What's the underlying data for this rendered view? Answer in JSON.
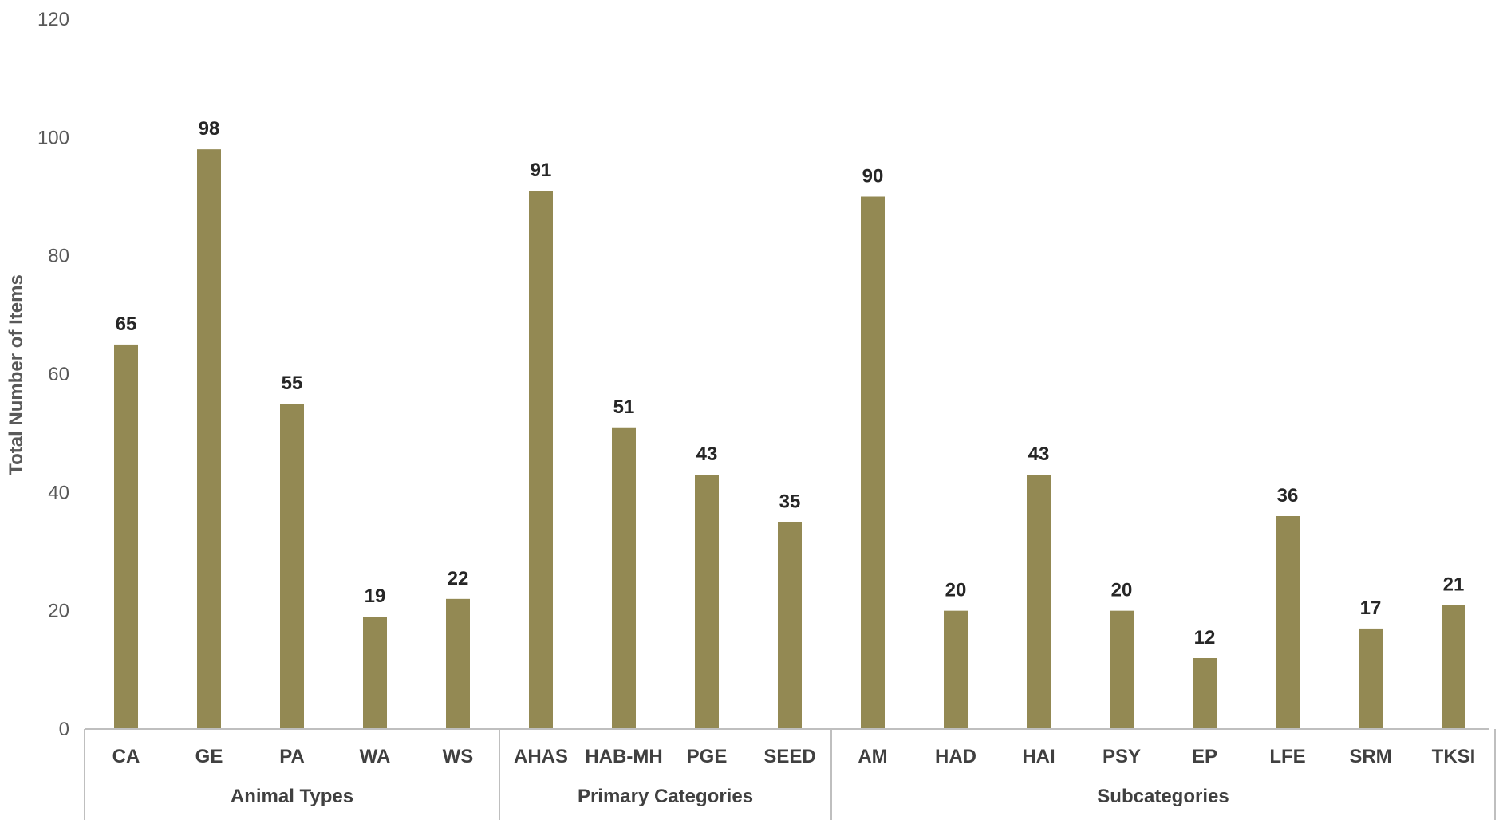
{
  "chart_data": {
    "type": "bar",
    "ylabel": "Total Number of Items",
    "ylim": [
      0,
      120
    ],
    "yticks": [
      "0",
      "20",
      "40",
      "60",
      "80",
      "100",
      "120"
    ],
    "grid": false,
    "legend": "none",
    "bar_color": "#938953",
    "groups": [
      {
        "name": "Animal Types",
        "categories": [
          "CA",
          "GE",
          "PA",
          "WA",
          "WS"
        ],
        "values": [
          65,
          98,
          55,
          19,
          22
        ]
      },
      {
        "name": "Primary Categories",
        "categories": [
          "AHAS",
          "HAB-MH",
          "PGE",
          "SEED"
        ],
        "values": [
          91,
          51,
          43,
          35
        ]
      },
      {
        "name": "Subcategories",
        "categories": [
          "AM",
          "HAD",
          "HAI",
          "PSY",
          "EP",
          "LFE",
          "SRM",
          "TKSI"
        ],
        "values": [
          90,
          20,
          43,
          20,
          12,
          36,
          17,
          21
        ]
      }
    ]
  }
}
